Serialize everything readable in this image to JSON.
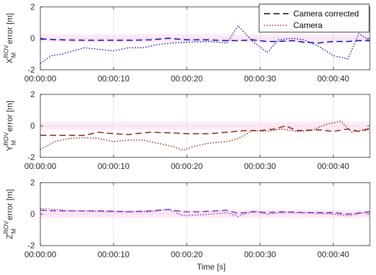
{
  "chart_data": [
    {
      "type": "line",
      "ylabel_main": "X",
      "ylabel_sup": "ROV",
      "ylabel_sub": "M",
      "ylabel_rest": " error [m]",
      "xlabel": "",
      "ylim": [
        -2,
        2
      ],
      "yticks": [
        "2",
        "0",
        "-2"
      ],
      "xlim": [
        0,
        45
      ],
      "xticks": [
        "00:00:00",
        "00:00:10",
        "00:00:20",
        "00:00:30",
        "00:00:40"
      ],
      "grid": true,
      "legend": "top-right",
      "band_color": "#ffccee",
      "series": [
        {
          "name": "Camera corrected",
          "color": "#0000cc",
          "dash": "dashed",
          "x": [
            0,
            3,
            6,
            9,
            12,
            15,
            17.5,
            20,
            23,
            25.5,
            27,
            29,
            31,
            32.5,
            34.5,
            36,
            38,
            40,
            42,
            43.5,
            45
          ],
          "y": [
            -0.05,
            -0.1,
            -0.12,
            -0.12,
            -0.12,
            -0.1,
            0.0,
            -0.1,
            -0.1,
            -0.15,
            -0.15,
            -0.1,
            -0.2,
            -0.2,
            -0.15,
            -0.25,
            -0.3,
            -0.2,
            -0.2,
            -0.15,
            -0.15
          ]
        },
        {
          "name": "Camera",
          "color": "#0000cc",
          "dash": "dotted",
          "x": [
            0,
            1.5,
            3,
            4.5,
            6,
            8,
            10,
            12,
            14,
            16,
            18,
            20,
            23,
            25.5,
            27,
            29,
            31,
            32.5,
            34.5,
            36,
            38,
            40,
            42,
            43.5,
            45
          ],
          "y": [
            -1.6,
            -1.1,
            -1.0,
            -0.8,
            -0.6,
            -0.7,
            -0.8,
            -0.6,
            -0.6,
            -0.4,
            -0.3,
            -0.25,
            -0.2,
            -0.3,
            0.8,
            -0.2,
            -0.9,
            -0.1,
            0.0,
            -0.1,
            -0.5,
            -1.1,
            -1.3,
            0.3,
            -0.15
          ]
        }
      ]
    },
    {
      "type": "line",
      "ylabel_main": "Y",
      "ylabel_sup": "ROV",
      "ylabel_sub": "M",
      "ylabel_rest": " error [m]",
      "xlabel": "",
      "ylim": [
        -2,
        2
      ],
      "yticks": [
        "2",
        "0",
        "-2"
      ],
      "xlim": [
        0,
        45
      ],
      "xticks": [
        "00:00:00",
        "00:00:10",
        "00:00:20",
        "00:00:30",
        "00:00:40"
      ],
      "grid": true,
      "band_color": "#ffccee",
      "series": [
        {
          "name": "Camera corrected",
          "color": "#8b1a00",
          "dash": "dashed",
          "x": [
            0,
            3,
            6,
            8,
            10,
            12,
            15,
            18,
            20,
            23,
            25.5,
            28,
            30,
            32,
            33.5,
            35,
            38,
            40,
            42,
            43.5,
            45
          ],
          "y": [
            -0.6,
            -0.6,
            -0.6,
            -0.4,
            -0.5,
            -0.55,
            -0.4,
            -0.45,
            -0.5,
            -0.5,
            -0.4,
            -0.3,
            -0.3,
            -0.2,
            0.0,
            -0.3,
            -0.25,
            -0.35,
            -0.2,
            -0.35,
            -0.2
          ]
        },
        {
          "name": "Camera",
          "color": "#8b1a00",
          "dash": "dotted",
          "x": [
            0,
            2,
            4,
            6,
            8,
            10,
            12,
            14,
            16,
            18,
            19.5,
            21,
            23,
            25.5,
            27,
            29,
            31,
            33,
            35,
            37,
            39,
            41,
            42.5,
            45
          ],
          "y": [
            -1.5,
            -1.0,
            -0.8,
            -0.75,
            -0.8,
            -1.0,
            -0.9,
            -0.9,
            -1.1,
            -1.3,
            -1.55,
            -1.3,
            -1.1,
            -1.0,
            -0.8,
            -0.3,
            -0.35,
            -0.2,
            -0.35,
            -0.3,
            0.1,
            0.3,
            -0.4,
            -0.15
          ]
        }
      ]
    },
    {
      "type": "line",
      "ylabel_main": "Z",
      "ylabel_sup": "ROV",
      "ylabel_sub": "M",
      "ylabel_rest": " error [m]",
      "xlabel": "Time [s]",
      "ylim": [
        -2,
        2
      ],
      "yticks": [
        "2",
        "0",
        "-2"
      ],
      "xlim": [
        0,
        45
      ],
      "xticks": [
        "00:00:00",
        "00:00:10",
        "00:00:20",
        "00:00:30",
        "00:00:40"
      ],
      "grid": true,
      "band_color": "#ffccee",
      "series": [
        {
          "name": "Camera corrected",
          "color": "#7b2cc0",
          "dash": "dashed",
          "x": [
            0,
            3,
            6,
            9,
            12,
            15,
            17.5,
            19.5,
            22,
            25.5,
            27,
            29,
            31,
            33,
            36,
            40,
            42,
            45
          ],
          "y": [
            0.25,
            0.2,
            0.2,
            0.2,
            0.15,
            0.2,
            0.3,
            0.15,
            0.15,
            0.25,
            0.05,
            0.15,
            0.1,
            0.15,
            0.1,
            0.1,
            0.0,
            0.15
          ]
        },
        {
          "name": "Camera",
          "color": "#7b2cc0",
          "dash": "dotted",
          "x": [
            0,
            2,
            4,
            6,
            9,
            12,
            15,
            17.5,
            19.5,
            22,
            25.5,
            27,
            29,
            31,
            33,
            36,
            40,
            42,
            45
          ],
          "y": [
            0.35,
            0.3,
            0.2,
            0.2,
            0.15,
            0.15,
            0.15,
            0.3,
            -0.1,
            -0.05,
            0.1,
            -0.15,
            0.2,
            0.0,
            0.1,
            0.1,
            0.0,
            -0.1,
            0.15
          ]
        }
      ]
    }
  ]
}
